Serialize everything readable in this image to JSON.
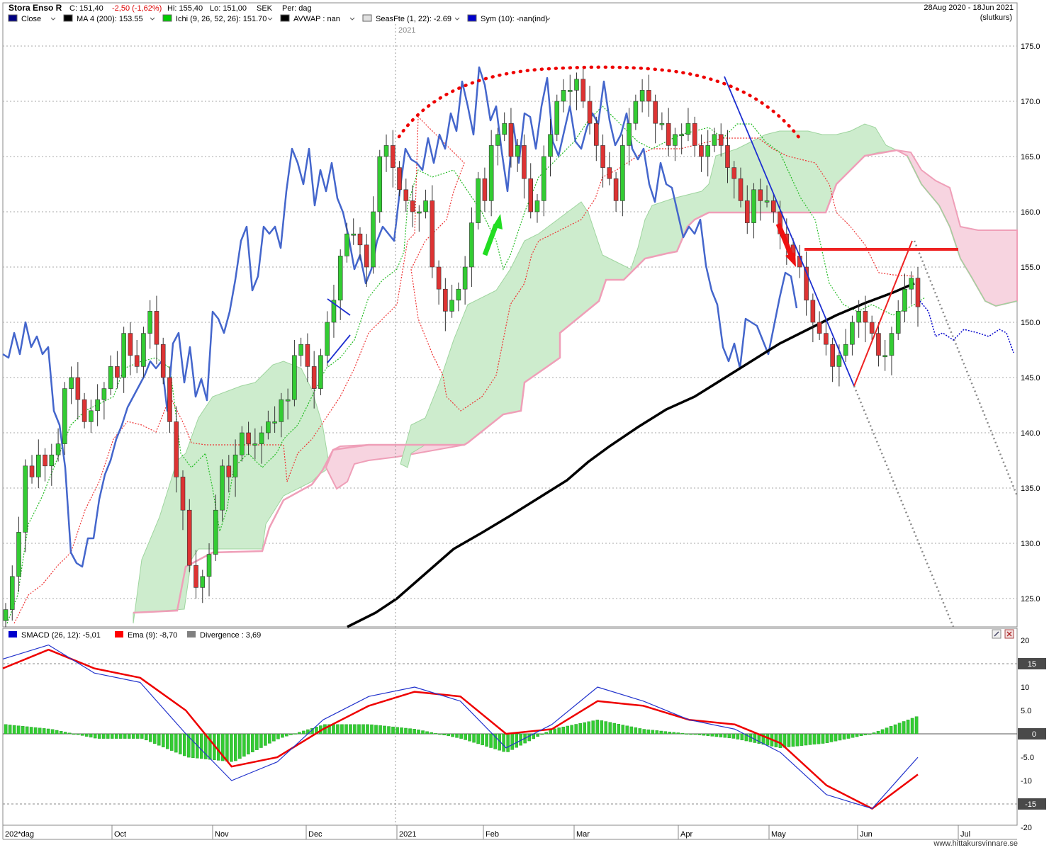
{
  "header": {
    "title": "Stora Enso R",
    "close_label": "C: 151,40",
    "change_label": "-2,50 (-1,62%)",
    "high_label": "Hi: 155,40",
    "low_label": "Lo: 151,00",
    "currency": "SEK",
    "period_label": "Per: dag",
    "date_range": "28Aug 2020 - 18Jun 2021",
    "price_type": "(slutkurs)"
  },
  "legend": [
    {
      "label": "Close",
      "color": "#000080",
      "dropdown": true
    },
    {
      "label": "MA 4 (200): 153.55",
      "color": "#000000",
      "dropdown": true
    },
    {
      "label": "Ichi (9, 26, 52, 26): 151.70",
      "color": "#00cc00",
      "dropdown": true
    },
    {
      "label": "AVWAP : nan",
      "color": "#000000",
      "dropdown": true
    },
    {
      "label": "SeasFte (1, 22): -2.69",
      "color": "#e0e0e0",
      "dropdown": true
    },
    {
      "label": "Sym (10): -nan(ind)",
      "color": "#0000cc",
      "dropdown": true
    }
  ],
  "indicator_legend": [
    {
      "label": "SMACD (26, 12): -5,01",
      "color": "#0000cc"
    },
    {
      "label": "Ema (9): -8,70",
      "color": "#ff0000"
    },
    {
      "label": "Divergence : 3,69",
      "color": "#808080"
    }
  ],
  "year_marker": "2021",
  "x_labels": [
    "202*dag",
    "Oct",
    "Nov",
    "Dec",
    "2021",
    "Feb",
    "Mar",
    "Apr",
    "May",
    "Jun",
    "Jul"
  ],
  "footer": "www.hittakursvinnare.se",
  "colors": {
    "up": "#33cc33",
    "down": "#dd3333",
    "rsi_line": "#4466cc",
    "ma": "#000000",
    "cloud_green": "#bfe8bf",
    "cloud_red": "#f7c6d6"
  },
  "chart_data": [
    {
      "type": "candlestick",
      "yaxis_ticks": [
        "175.0",
        "170.0",
        "165.0",
        "160.0",
        "155.0",
        "150.0",
        "145.0",
        "140.0",
        "135.0",
        "130.0",
        "125.0"
      ],
      "ylim": [
        122.5,
        177.5
      ],
      "series": [
        {
          "name": "Close",
          "x": [
            "2020-08-28",
            "2020-09-15",
            "2020-10-01",
            "2020-10-15",
            "2020-11-02",
            "2020-11-16",
            "2020-12-01",
            "2020-12-15",
            "2021-01-04",
            "2021-01-18",
            "2021-02-01",
            "2021-02-15",
            "2021-03-01",
            "2021-03-15",
            "2021-04-01",
            "2021-04-15",
            "2021-05-03",
            "2021-05-17",
            "2021-06-01",
            "2021-06-18"
          ],
          "values": [
            124,
            138,
            143,
            149,
            131,
            138,
            144,
            150,
            163,
            159,
            151,
            162,
            171,
            165,
            168,
            166,
            160,
            153,
            146,
            151.4
          ]
        },
        {
          "name": "MA 4 (200)",
          "x": [
            "2021-01-18",
            "2021-02-15",
            "2021-03-15",
            "2021-04-15",
            "2021-05-17",
            "2021-06-18"
          ],
          "values": [
            123,
            132,
            139,
            145,
            150,
            153.55
          ]
        }
      ],
      "annotations": [
        {
          "type": "arc",
          "color": "#ee0000",
          "from": [
            "2021-01-04",
            168
          ],
          "peak": [
            "2021-03-01",
            173
          ],
          "to": [
            "2021-05-17",
            167
          ]
        },
        {
          "type": "level",
          "color": "#ee0000",
          "value": 156.5,
          "from": "2021-05-12",
          "to": "2021-07-01"
        },
        {
          "type": "arrow",
          "color": "#00cc00",
          "direction": "up"
        },
        {
          "type": "arrow",
          "color": "#ee0000",
          "direction": "down"
        }
      ]
    },
    {
      "type": "line",
      "title": "SMACD",
      "yaxis_ticks": [
        "20",
        "15",
        "10",
        "5.0",
        "0",
        "-5.0",
        "-10",
        "-15",
        "-20"
      ],
      "highlighted_ticks": [
        "15",
        "0",
        "-15"
      ],
      "ylim": [
        -20,
        20
      ],
      "series": [
        {
          "name": "SMACD (26, 12)",
          "values": [
            16,
            19,
            13,
            11,
            0,
            -10,
            -6,
            3,
            8,
            10,
            7,
            -3,
            2,
            10,
            7,
            3,
            1,
            -4,
            -13,
            -16,
            -5.01
          ]
        },
        {
          "name": "Ema (9)",
          "values": [
            14,
            18,
            14,
            12,
            5,
            -7,
            -5,
            1,
            6,
            9,
            8,
            0,
            1,
            7,
            6,
            3,
            2,
            -2,
            -11,
            -16,
            -8.7
          ]
        },
        {
          "name": "Divergence",
          "values": [
            2,
            1,
            -1,
            -1,
            -5,
            -6,
            -1,
            2,
            2,
            1,
            -1,
            -4,
            1,
            3,
            1,
            0,
            -1,
            -3,
            -2,
            0,
            3.69
          ]
        }
      ]
    }
  ]
}
